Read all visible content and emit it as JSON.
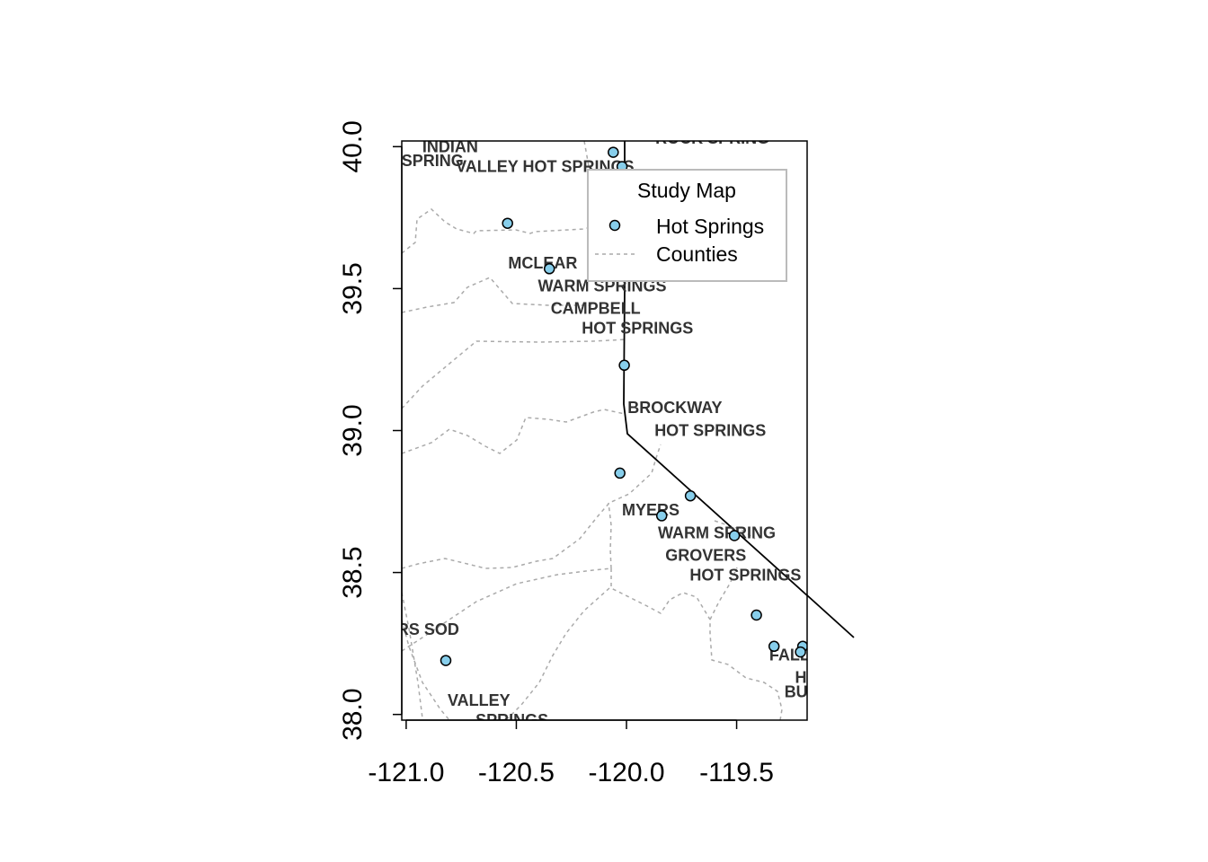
{
  "legend": {
    "title": "Study Map",
    "items": [
      {
        "label": "Hot Springs",
        "symbol": "point",
        "fill": "#87CEEB"
      },
      {
        "label": "Counties",
        "symbol": "dashed-line",
        "color": "#aaaaaa"
      }
    ]
  },
  "colors": {
    "point_fill": "#87CEEB",
    "point_stroke": "#000000",
    "county_line": "#aaaaaa",
    "state_line": "#000000",
    "label_text": "#333333"
  },
  "chart_data": {
    "type": "scatter",
    "title": "",
    "xlabel": "",
    "ylabel": "",
    "xlim": [
      -121.02,
      -119.18
    ],
    "ylim": [
      37.98,
      40.02
    ],
    "x_ticks": [
      -121.0,
      -120.5,
      -120.0,
      -119.5
    ],
    "x_tick_labels": [
      "-121.0",
      "-120.5",
      "-120.0",
      "-119.5"
    ],
    "y_ticks": [
      38.0,
      38.5,
      39.0,
      39.5,
      40.0
    ],
    "y_tick_labels": [
      "38.0",
      "38.5",
      "39.0",
      "39.5",
      "40.0"
    ],
    "series": [
      {
        "name": "Hot Springs",
        "points": [
          {
            "x": -120.06,
            "y": 39.98
          },
          {
            "x": -120.02,
            "y": 39.93
          },
          {
            "x": -120.54,
            "y": 39.73
          },
          {
            "x": -120.35,
            "y": 39.57
          },
          {
            "x": -120.01,
            "y": 39.23
          },
          {
            "x": -120.03,
            "y": 38.85
          },
          {
            "x": -119.71,
            "y": 38.77
          },
          {
            "x": -119.84,
            "y": 38.7
          },
          {
            "x": -119.51,
            "y": 38.63
          },
          {
            "x": -119.41,
            "y": 38.35
          },
          {
            "x": -119.33,
            "y": 38.24
          },
          {
            "x": -119.2,
            "y": 38.24
          },
          {
            "x": -119.21,
            "y": 38.22
          },
          {
            "x": -120.82,
            "y": 38.19
          }
        ]
      }
    ],
    "place_labels": [
      {
        "text": "INDIAN",
        "x": -120.8,
        "y": 40.0
      },
      {
        "text": "SPRING",
        "x": -120.88,
        "y": 39.95
      },
      {
        "text": "VALLEY HOT SPRINGS",
        "x": -120.37,
        "y": 39.93
      },
      {
        "text": "ROCK SPRING",
        "x": -119.61,
        "y": 40.03
      },
      {
        "text": "MCLEAR",
        "x": -120.38,
        "y": 39.59
      },
      {
        "text": "WARM SPRINGS",
        "x": -120.11,
        "y": 39.51
      },
      {
        "text": "CAMPBELL",
        "x": -120.14,
        "y": 39.43
      },
      {
        "text": "HOT SPRINGS",
        "x": -119.95,
        "y": 39.36
      },
      {
        "text": "BROCKWAY",
        "x": -119.78,
        "y": 39.08
      },
      {
        "text": "HOT SPRINGS",
        "x": -119.62,
        "y": 39.0
      },
      {
        "text": "MYERS",
        "x": -119.89,
        "y": 38.72
      },
      {
        "text": "WARM SPRING",
        "x": -119.59,
        "y": 38.64
      },
      {
        "text": "GROVERS",
        "x": -119.64,
        "y": 38.56
      },
      {
        "text": "HOT SPRINGS",
        "x": -119.46,
        "y": 38.49
      },
      {
        "text": "RS SOD",
        "x": -120.9,
        "y": 38.3
      },
      {
        "text": "FALL",
        "x": -119.26,
        "y": 38.21
      },
      {
        "text": "HO",
        "x": -119.18,
        "y": 38.13
      },
      {
        "text": "BU",
        "x": -119.23,
        "y": 38.08
      },
      {
        "text": "VALLEY",
        "x": -120.67,
        "y": 38.05
      },
      {
        "text": "SPRINGS",
        "x": -120.52,
        "y": 37.98
      }
    ]
  }
}
